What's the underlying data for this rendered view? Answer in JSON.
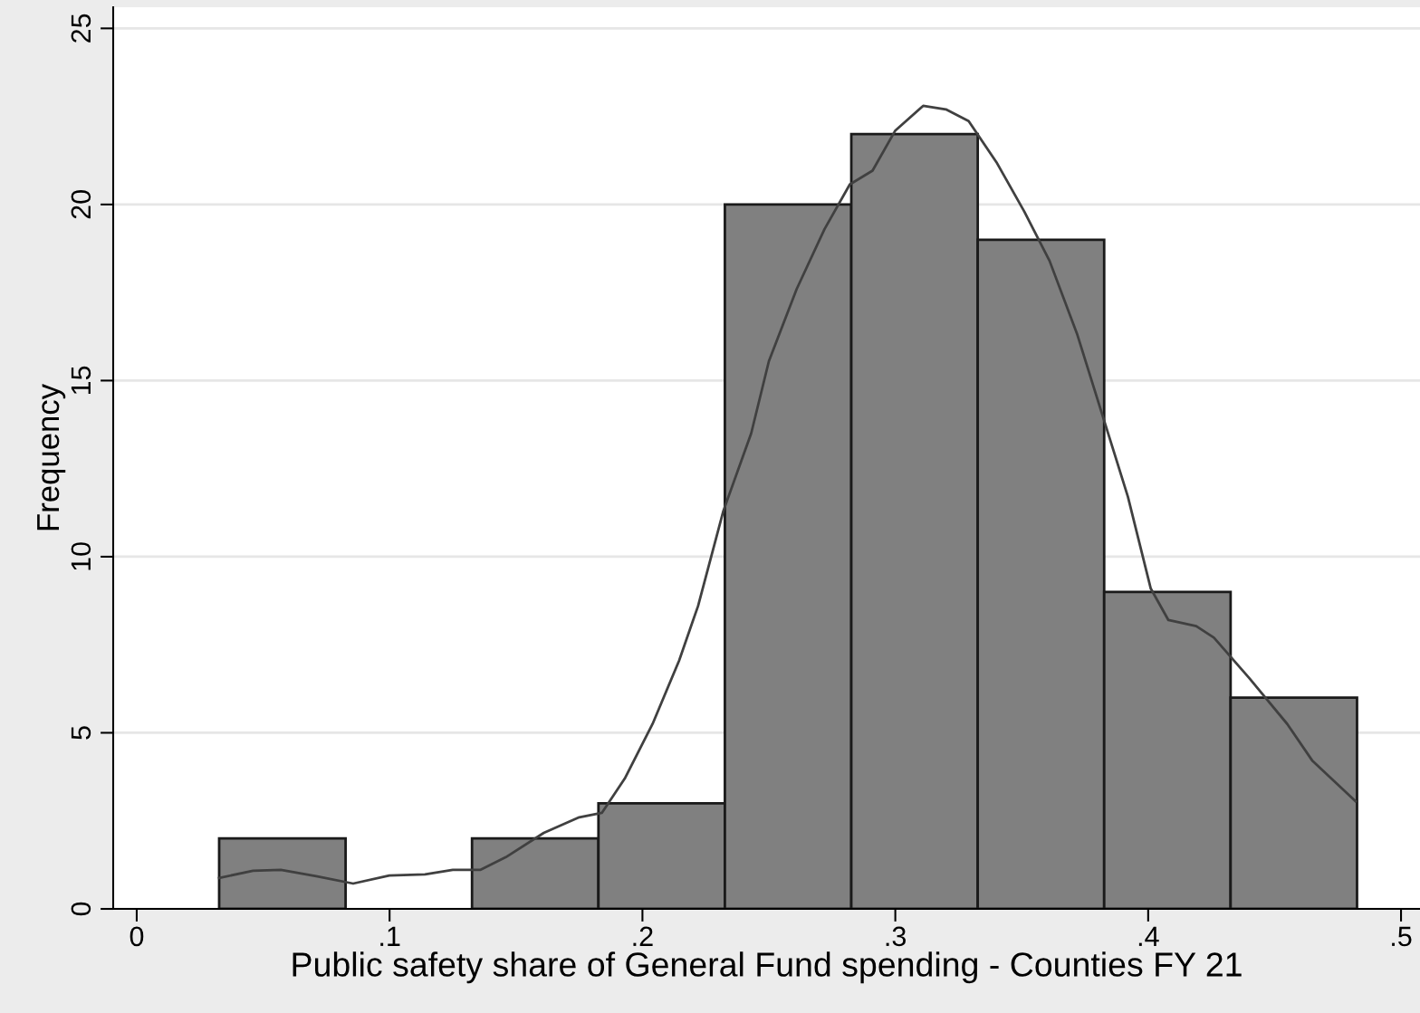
{
  "chart_data": {
    "type": "histogram",
    "xlabel": "Public safety share of General Fund spending - Counties FY 21",
    "ylabel": "Frequency",
    "bins": [
      0.0326,
      0.0826,
      0.1326,
      0.1826,
      0.2326,
      0.2826,
      0.3326,
      0.3826,
      0.4326,
      0.4826
    ],
    "values": [
      2,
      0,
      2,
      3,
      20,
      22,
      19,
      9,
      6
    ],
    "color": "#808080",
    "series": [
      {
        "type": "line",
        "color": "#404040",
        "x": [
          0.0326,
          0.046,
          0.057,
          0.071,
          0.0856,
          0.0999,
          0.114,
          0.125,
          0.136,
          0.146,
          0.161,
          0.175,
          0.184,
          0.193,
          0.204,
          0.2145,
          0.222,
          0.232,
          0.243,
          0.25,
          0.261,
          0.272,
          0.282,
          0.291,
          0.3,
          0.311,
          0.32,
          0.329,
          0.34,
          0.351,
          0.361,
          0.372,
          0.382,
          0.392,
          0.401,
          0.408,
          0.419,
          0.426,
          0.44,
          0.455,
          0.465,
          0.482
        ],
        "values": [
          0.88,
          1.08,
          1.11,
          0.93,
          0.72,
          0.95,
          0.98,
          1.11,
          1.11,
          1.47,
          2.16,
          2.6,
          2.73,
          3.7,
          5.25,
          7.05,
          8.6,
          11.3,
          13.5,
          15.55,
          17.6,
          19.3,
          20.57,
          20.96,
          22.1,
          22.8,
          22.7,
          22.37,
          21.2,
          19.8,
          18.4,
          16.3,
          14.0,
          11.7,
          9.1,
          8.2,
          8.03,
          7.7,
          6.55,
          5.25,
          4.2,
          3.06
        ]
      }
    ],
    "xlim": [
      -0.0093,
      0.5075
    ],
    "ylim": [
      0,
      25.6
    ],
    "xticks": [
      0,
      {
        "value": 0.1,
        "label": ".1"
      },
      {
        "value": 0.2,
        "label": ".2"
      },
      {
        "value": 0.3,
        "label": ".3"
      },
      {
        "value": 0.4,
        "label": ".4"
      },
      {
        "value": 0.5,
        "label": ".5"
      }
    ],
    "yticks": [
      0,
      5,
      10,
      15,
      20,
      25
    ],
    "grid": "y",
    "legend": false
  }
}
